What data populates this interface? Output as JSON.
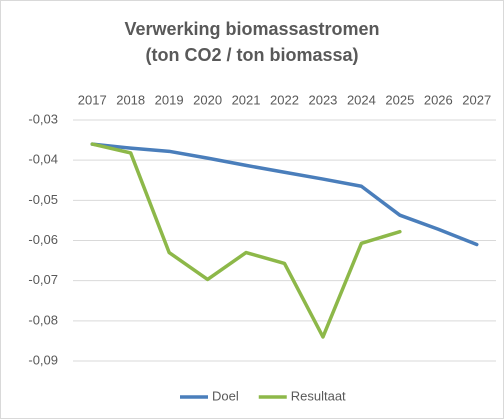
{
  "chart_data": {
    "type": "line",
    "title": "Verwerking biomassastromen",
    "subtitle": "(ton CO2 / ton biomassa)",
    "categories": [
      "2017",
      "2018",
      "2019",
      "2020",
      "2021",
      "2022",
      "2023",
      "2024",
      "2025",
      "2026",
      "2027"
    ],
    "series": [
      {
        "name": "Doel",
        "color": "#4a7ebb",
        "values": [
          -0.036,
          -0.037,
          -0.0378,
          -0.0395,
          -0.0413,
          -0.043,
          -0.0447,
          -0.0465,
          -0.0537,
          -0.0572,
          -0.061
        ]
      },
      {
        "name": "Resultaat",
        "color": "#8db849",
        "values": [
          -0.036,
          -0.0382,
          -0.063,
          -0.0697,
          -0.063,
          -0.0657,
          -0.084,
          -0.0607,
          -0.0578,
          null,
          null
        ]
      }
    ],
    "ylim": [
      -0.09,
      -0.03
    ],
    "yticks": [
      {
        "value": -0.03,
        "label": "-0,03"
      },
      {
        "value": -0.04,
        "label": "-0,04"
      },
      {
        "value": -0.05,
        "label": "-0,05"
      },
      {
        "value": -0.06,
        "label": "-0,06"
      },
      {
        "value": -0.07,
        "label": "-0,07"
      },
      {
        "value": -0.08,
        "label": "-0,08"
      },
      {
        "value": -0.09,
        "label": "-0,09"
      }
    ],
    "grid": true,
    "legend": "bottom"
  }
}
